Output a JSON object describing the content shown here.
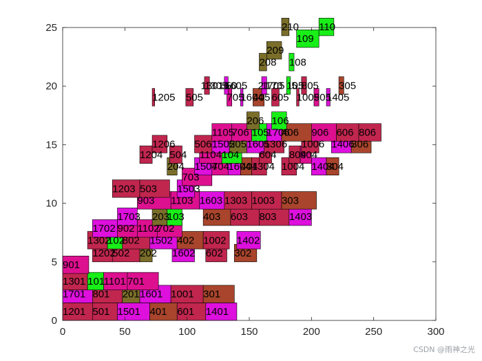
{
  "chart_data": {
    "type": "bar",
    "title": "",
    "xlabel": "",
    "ylabel": "",
    "xlim": [
      0,
      300
    ],
    "ylim": [
      0,
      25
    ],
    "xticks": [
      0,
      50,
      100,
      150,
      200,
      250,
      300
    ],
    "yticks": [
      0,
      5,
      10,
      15,
      20,
      25
    ],
    "grid": false,
    "bar_height": 1.5,
    "colors": {
      "crimson": "#c0264e",
      "magenta": "#dd10dd",
      "pink": "#dd1090",
      "green": "#18ee18",
      "olive": "#7a6e2a",
      "brown": "#a8452c"
    },
    "bars": [
      {
        "label": "1201",
        "start": 0,
        "end": 24,
        "y": 0,
        "color": "crimson"
      },
      {
        "label": "501",
        "start": 24,
        "end": 44,
        "y": 0,
        "color": "crimson"
      },
      {
        "label": "1501",
        "start": 44,
        "end": 70,
        "y": 0,
        "color": "magenta"
      },
      {
        "label": "401",
        "start": 70,
        "end": 92,
        "y": 0,
        "color": "brown"
      },
      {
        "label": "601",
        "start": 92,
        "end": 115,
        "y": 0,
        "color": "crimson"
      },
      {
        "label": "1401",
        "start": 115,
        "end": 140,
        "y": 0,
        "color": "magenta"
      },
      {
        "label": "1701",
        "start": 0,
        "end": 24,
        "y": 1.5,
        "color": "magenta"
      },
      {
        "label": "801",
        "start": 24,
        "end": 48,
        "y": 1.5,
        "color": "crimson"
      },
      {
        "label": "201",
        "start": 48,
        "end": 62,
        "y": 1.5,
        "color": "olive"
      },
      {
        "label": "1601",
        "start": 62,
        "end": 87,
        "y": 1.5,
        "color": "magenta"
      },
      {
        "label": "1001",
        "start": 87,
        "end": 113,
        "y": 1.5,
        "color": "crimson"
      },
      {
        "label": "301",
        "start": 113,
        "end": 138,
        "y": 1.5,
        "color": "brown"
      },
      {
        "label": "1301",
        "start": 0,
        "end": 20,
        "y": 2.6,
        "color": "crimson"
      },
      {
        "label": "101",
        "start": 20,
        "end": 33,
        "y": 2.6,
        "color": "green"
      },
      {
        "label": "1101",
        "start": 33,
        "end": 52,
        "y": 2.6,
        "color": "pink"
      },
      {
        "label": "701",
        "start": 52,
        "end": 77,
        "y": 2.6,
        "color": "pink"
      },
      {
        "label": "901",
        "start": 0,
        "end": 21,
        "y": 4,
        "color": "pink"
      },
      {
        "label": "1202",
        "start": 24,
        "end": 40,
        "y": 5,
        "color": "crimson"
      },
      {
        "label": "502",
        "start": 40,
        "end": 62,
        "y": 5,
        "color": "crimson"
      },
      {
        "label": "202",
        "start": 62,
        "end": 72,
        "y": 5,
        "color": "olive"
      },
      {
        "label": "1602",
        "start": 88,
        "end": 106,
        "y": 5,
        "color": "magenta"
      },
      {
        "label": "602",
        "start": 115,
        "end": 132,
        "y": 5,
        "color": "crimson"
      },
      {
        "label": "302",
        "start": 138,
        "end": 156,
        "y": 5,
        "color": "brown"
      },
      {
        "label": "1302",
        "start": 20,
        "end": 36,
        "y": 6.1,
        "color": "crimson"
      },
      {
        "label": "102",
        "start": 36,
        "end": 48,
        "y": 6.1,
        "color": "green"
      },
      {
        "label": "802",
        "start": 48,
        "end": 70,
        "y": 6.1,
        "color": "crimson"
      },
      {
        "label": "1502",
        "start": 70,
        "end": 92,
        "y": 6.1,
        "color": "magenta"
      },
      {
        "label": "402",
        "start": 92,
        "end": 113,
        "y": 6.1,
        "color": "brown"
      },
      {
        "label": "1002",
        "start": 113,
        "end": 134,
        "y": 6.1,
        "color": "crimson"
      },
      {
        "label": "1402",
        "start": 140,
        "end": 159,
        "y": 6.1,
        "color": "magenta"
      },
      {
        "label": "1702",
        "start": 24,
        "end": 44,
        "y": 7.1,
        "color": "magenta"
      },
      {
        "label": "902",
        "start": 44,
        "end": 60,
        "y": 7.1,
        "color": "pink"
      },
      {
        "label": "1102",
        "start": 60,
        "end": 76,
        "y": 7.1,
        "color": "pink"
      },
      {
        "label": "702",
        "start": 76,
        "end": 96,
        "y": 7.1,
        "color": "pink"
      },
      {
        "label": "1703",
        "start": 44,
        "end": 60,
        "y": 8.1,
        "color": "magenta"
      },
      {
        "label": "203",
        "start": 72,
        "end": 84,
        "y": 8.1,
        "color": "olive"
      },
      {
        "label": "103",
        "start": 84,
        "end": 96,
        "y": 8.1,
        "color": "green"
      },
      {
        "label": "403",
        "start": 113,
        "end": 135,
        "y": 8.1,
        "color": "brown"
      },
      {
        "label": "603",
        "start": 135,
        "end": 158,
        "y": 8.1,
        "color": "crimson"
      },
      {
        "label": "803",
        "start": 158,
        "end": 182,
        "y": 8.1,
        "color": "crimson"
      },
      {
        "label": "1403",
        "start": 182,
        "end": 200,
        "y": 8.1,
        "color": "magenta"
      },
      {
        "label": "903",
        "start": 60,
        "end": 87,
        "y": 9.5,
        "color": "pink"
      },
      {
        "label": "1103",
        "start": 87,
        "end": 110,
        "y": 9.5,
        "color": "pink"
      },
      {
        "label": "1603",
        "start": 110,
        "end": 130,
        "y": 9.5,
        "color": "magenta"
      },
      {
        "label": "1303",
        "start": 130,
        "end": 152,
        "y": 9.5,
        "color": "crimson"
      },
      {
        "label": "1003",
        "start": 152,
        "end": 176,
        "y": 9.5,
        "color": "crimson"
      },
      {
        "label": "303",
        "start": 176,
        "end": 204,
        "y": 9.5,
        "color": "brown"
      },
      {
        "label": "1203",
        "start": 40,
        "end": 62,
        "y": 10.5,
        "color": "crimson"
      },
      {
        "label": "503",
        "start": 62,
        "end": 86,
        "y": 10.5,
        "color": "crimson"
      },
      {
        "label": "1503",
        "start": 92,
        "end": 106,
        "y": 10.5,
        "color": "magenta"
      },
      {
        "label": "703",
        "start": 96,
        "end": 120,
        "y": 11.5,
        "color": "pink"
      },
      {
        "label": "204",
        "start": 84,
        "end": 92,
        "y": 12.4,
        "color": "olive"
      },
      {
        "label": "1504",
        "start": 106,
        "end": 120,
        "y": 12.4,
        "color": "magenta"
      },
      {
        "label": "704",
        "start": 120,
        "end": 133,
        "y": 12.4,
        "color": "pink"
      },
      {
        "label": "1604",
        "start": 133,
        "end": 143,
        "y": 12.4,
        "color": "magenta"
      },
      {
        "label": "404",
        "start": 143,
        "end": 152,
        "y": 12.4,
        "color": "brown"
      },
      {
        "label": "1304",
        "start": 152,
        "end": 164,
        "y": 12.4,
        "color": "crimson"
      },
      {
        "label": "1004",
        "start": 176,
        "end": 188,
        "y": 12.4,
        "color": "crimson"
      },
      {
        "label": "1404",
        "start": 200,
        "end": 212,
        "y": 12.4,
        "color": "magenta"
      },
      {
        "label": "304",
        "start": 212,
        "end": 222,
        "y": 12.4,
        "color": "brown"
      },
      {
        "label": "1204",
        "start": 62,
        "end": 72,
        "y": 13.4,
        "color": "crimson"
      },
      {
        "label": "504",
        "start": 86,
        "end": 96,
        "y": 13.4,
        "color": "crimson"
      },
      {
        "label": "1104",
        "start": 110,
        "end": 128,
        "y": 13.4,
        "color": "pink"
      },
      {
        "label": "104",
        "start": 128,
        "end": 144,
        "y": 13.4,
        "color": "green"
      },
      {
        "label": "604",
        "start": 158,
        "end": 168,
        "y": 13.4,
        "color": "crimson"
      },
      {
        "label": "804",
        "start": 182,
        "end": 191,
        "y": 13.4,
        "color": "crimson"
      },
      {
        "label": "904",
        "start": 191,
        "end": 200,
        "y": 13.4,
        "color": "pink"
      },
      {
        "label": "1206",
        "start": 72,
        "end": 84,
        "y": 14.3,
        "color": "crimson"
      },
      {
        "label": "506",
        "start": 106,
        "end": 120,
        "y": 14.3,
        "color": "crimson"
      },
      {
        "label": "1505",
        "start": 120,
        "end": 134,
        "y": 14.3,
        "color": "magenta"
      },
      {
        "label": "205",
        "start": 134,
        "end": 148,
        "y": 14.3,
        "color": "olive"
      },
      {
        "label": "1605",
        "start": 148,
        "end": 162,
        "y": 14.3,
        "color": "magenta"
      },
      {
        "label": "1306",
        "start": 162,
        "end": 178,
        "y": 14.3,
        "color": "crimson"
      },
      {
        "label": "1006",
        "start": 192,
        "end": 206,
        "y": 14.3,
        "color": "crimson"
      },
      {
        "label": "1406",
        "start": 216,
        "end": 232,
        "y": 14.3,
        "color": "magenta"
      },
      {
        "label": "306",
        "start": 232,
        "end": 248,
        "y": 14.3,
        "color": "brown"
      },
      {
        "label": "1105",
        "start": 120,
        "end": 136,
        "y": 15.3,
        "color": "pink"
      },
      {
        "label": "706",
        "start": 136,
        "end": 152,
        "y": 15.3,
        "color": "pink"
      },
      {
        "label": "105",
        "start": 152,
        "end": 164,
        "y": 15.3,
        "color": "green"
      },
      {
        "label": "1706",
        "start": 164,
        "end": 176,
        "y": 15.3,
        "color": "magenta"
      },
      {
        "label": "406",
        "start": 176,
        "end": 200,
        "y": 15.3,
        "color": "brown"
      },
      {
        "label": "906",
        "start": 200,
        "end": 220,
        "y": 15.3,
        "color": "pink"
      },
      {
        "label": "606",
        "start": 220,
        "end": 238,
        "y": 15.3,
        "color": "crimson"
      },
      {
        "label": "806",
        "start": 238,
        "end": 256,
        "y": 15.3,
        "color": "crimson"
      },
      {
        "label": "206",
        "start": 148,
        "end": 158,
        "y": 16.3,
        "color": "olive"
      },
      {
        "label": "106",
        "start": 168,
        "end": 180,
        "y": 16.3,
        "color": "green"
      },
      {
        "label": "1205",
        "start": 72,
        "end": 74,
        "y": 18.3,
        "color": "crimson"
      },
      {
        "label": "505",
        "start": 99,
        "end": 105,
        "y": 18.3,
        "color": "crimson"
      },
      {
        "label": "705",
        "start": 132,
        "end": 136,
        "y": 18.3,
        "color": "pink"
      },
      {
        "label": "1604",
        "start": 143,
        "end": 145,
        "y": 18.3,
        "color": "magenta"
      },
      {
        "label": "405",
        "start": 153,
        "end": 162,
        "y": 18.3,
        "color": "brown"
      },
      {
        "label": "605",
        "start": 168,
        "end": 174,
        "y": 18.3,
        "color": "crimson"
      },
      {
        "label": "1005",
        "start": 188,
        "end": 190,
        "y": 18.3,
        "color": "crimson"
      },
      {
        "label": "905",
        "start": 202,
        "end": 206,
        "y": 18.3,
        "color": "pink"
      },
      {
        "label": "1405",
        "start": 212,
        "end": 215,
        "y": 18.3,
        "color": "magenta"
      },
      {
        "label": "1305",
        "start": 114,
        "end": 118,
        "y": 19.3,
        "color": "crimson"
      },
      {
        "label": "1605",
        "start": 130,
        "end": 133,
        "y": 19.3,
        "color": "magenta"
      },
      {
        "label": "1705",
        "start": 160,
        "end": 164,
        "y": 19.3,
        "color": "magenta"
      },
      {
        "label": "105",
        "start": 180,
        "end": 183,
        "y": 19.3,
        "color": "green"
      },
      {
        "label": "805",
        "start": 192,
        "end": 196,
        "y": 19.3,
        "color": "crimson"
      },
      {
        "label": "305",
        "start": 222,
        "end": 226,
        "y": 19.3,
        "color": "brown"
      },
      {
        "label": "208",
        "start": 158,
        "end": 164,
        "y": 21.3,
        "color": "olive"
      },
      {
        "label": "108",
        "start": 182,
        "end": 186,
        "y": 21.3,
        "color": "green"
      },
      {
        "label": "209",
        "start": 164,
        "end": 176,
        "y": 22.3,
        "color": "olive"
      },
      {
        "label": "109",
        "start": 188,
        "end": 206,
        "y": 23.3,
        "color": "green"
      },
      {
        "label": "210",
        "start": 176,
        "end": 182,
        "y": 24.3,
        "color": "olive"
      },
      {
        "label": "110",
        "start": 206,
        "end": 218,
        "y": 24.3,
        "color": "green"
      }
    ],
    "overlays": [
      {
        "label": "130",
        "x": 111,
        "y": 19.3
      },
      {
        "label": "16",
        "x": 125,
        "y": 19.3
      },
      {
        "label": "50",
        "x": 131,
        "y": 19.3
      },
      {
        "label": "21",
        "x": 157,
        "y": 19.3
      },
      {
        "label": "170",
        "x": 163,
        "y": 19.3
      },
      {
        "label": "5",
        "x": 184,
        "y": 19.3
      }
    ]
  },
  "watermark": "CSDN @雨神之光"
}
